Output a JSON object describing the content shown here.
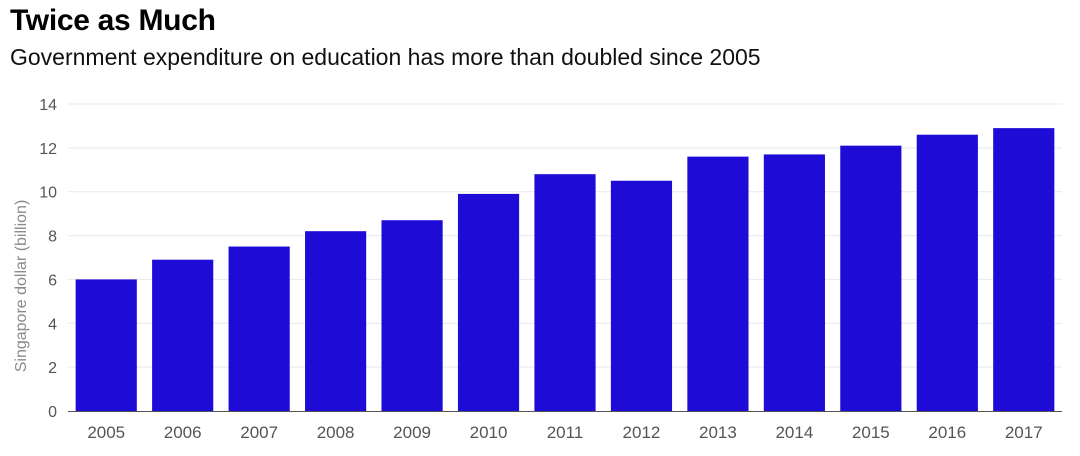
{
  "title": "Twice as Much",
  "subtitle": "Government expenditure on education has more than doubled since 2005",
  "chart_data": {
    "type": "bar",
    "categories": [
      "2005",
      "2006",
      "2007",
      "2008",
      "2009",
      "2010",
      "2011",
      "2012",
      "2013",
      "2014",
      "2015",
      "2016",
      "2017"
    ],
    "values": [
      6.0,
      6.9,
      7.5,
      8.2,
      8.7,
      9.9,
      10.8,
      10.5,
      11.6,
      11.7,
      12.1,
      12.6,
      12.9
    ],
    "ylabel": "Singapore dollar (billion)",
    "xlabel": "",
    "ylim": [
      0,
      14
    ],
    "yticks": [
      0,
      2,
      4,
      6,
      8,
      10,
      12,
      14
    ],
    "grid": true,
    "bar_color": "#1e0bd6"
  }
}
